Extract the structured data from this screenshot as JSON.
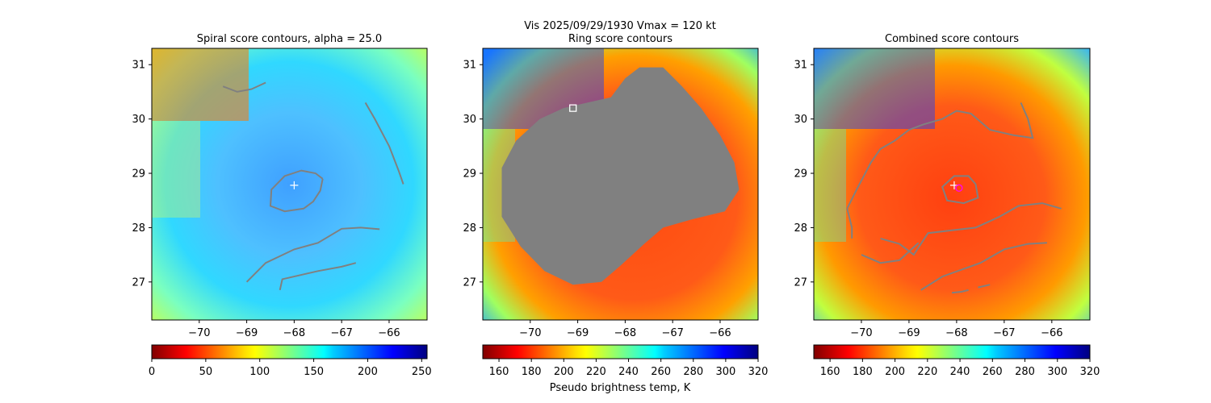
{
  "suptitle_line1": "Vis  2025/09/29/1930    Vmax = 120 kt",
  "colorbar_label": "Pseudo brightness temp, K",
  "colors": {
    "contour": "#808080",
    "center_marker": "#ffffff",
    "combined_circle": "#ff00ff"
  },
  "chart_data": [
    {
      "type": "heatmap",
      "title": "Spiral score contours, alpha = 25.0",
      "colormap": "jet",
      "xlim": [
        -71.0,
        -65.2
      ],
      "ylim": [
        26.3,
        31.3
      ],
      "xticks": [
        -70,
        -69,
        -68,
        -67,
        -66
      ],
      "yticks": [
        27,
        28,
        29,
        30,
        31
      ],
      "center": {
        "lon": -68.0,
        "lat": 28.78
      },
      "contours": [
        [
          [
            -67.4,
            28.9
          ],
          [
            -67.55,
            29.0
          ],
          [
            -67.85,
            29.05
          ],
          [
            -68.2,
            28.95
          ],
          [
            -68.48,
            28.7
          ],
          [
            -68.5,
            28.4
          ],
          [
            -68.2,
            28.3
          ],
          [
            -67.8,
            28.35
          ],
          [
            -67.6,
            28.48
          ],
          [
            -67.45,
            28.68
          ],
          [
            -67.4,
            28.9
          ]
        ],
        [
          [
            -66.5,
            30.3
          ],
          [
            -66.3,
            30.0
          ],
          [
            -66.0,
            29.5
          ],
          [
            -65.8,
            29.05
          ],
          [
            -65.7,
            28.8
          ]
        ],
        [
          [
            -69.0,
            27.0
          ],
          [
            -68.6,
            27.35
          ],
          [
            -68.0,
            27.6
          ],
          [
            -67.5,
            27.72
          ],
          [
            -67.0,
            27.98
          ],
          [
            -66.6,
            28.0
          ],
          [
            -66.2,
            27.97
          ]
        ],
        [
          [
            -68.3,
            26.85
          ],
          [
            -68.25,
            27.05
          ],
          [
            -67.5,
            27.2
          ],
          [
            -67.0,
            27.28
          ],
          [
            -66.7,
            27.35
          ]
        ],
        [
          [
            -69.5,
            30.6
          ],
          [
            -69.2,
            30.5
          ],
          [
            -68.9,
            30.55
          ],
          [
            -68.6,
            30.67
          ]
        ]
      ],
      "colorbar": {
        "min": 0,
        "max": 255,
        "ticks": [
          0,
          50,
          100,
          150,
          200,
          250
        ],
        "cmap": "jet"
      }
    },
    {
      "type": "heatmap",
      "title": "Ring score contours",
      "colormap": "jet_r",
      "xlim": [
        -71.0,
        -65.2
      ],
      "ylim": [
        26.3,
        31.3
      ],
      "xticks": [
        -70,
        -69,
        -68,
        -67,
        -66
      ],
      "yticks": [
        27,
        28,
        29,
        30,
        31
      ],
      "square_marker": {
        "lon": -69.1,
        "lat": 30.2
      },
      "filled_region": [
        [
          -70.6,
          29.1
        ],
        [
          -70.3,
          29.6
        ],
        [
          -69.8,
          30.0
        ],
        [
          -69.3,
          30.2
        ],
        [
          -68.8,
          30.3
        ],
        [
          -68.3,
          30.4
        ],
        [
          -68.0,
          30.75
        ],
        [
          -67.7,
          30.95
        ],
        [
          -67.2,
          30.95
        ],
        [
          -66.8,
          30.6
        ],
        [
          -66.4,
          30.2
        ],
        [
          -66.0,
          29.7
        ],
        [
          -65.7,
          29.2
        ],
        [
          -65.6,
          28.7
        ],
        [
          -65.9,
          28.3
        ],
        [
          -66.6,
          28.15
        ],
        [
          -67.2,
          28.0
        ],
        [
          -67.6,
          27.7
        ],
        [
          -68.1,
          27.3
        ],
        [
          -68.5,
          27.0
        ],
        [
          -69.1,
          26.95
        ],
        [
          -69.7,
          27.2
        ],
        [
          -70.2,
          27.65
        ],
        [
          -70.6,
          28.2
        ],
        [
          -70.6,
          29.1
        ]
      ],
      "colorbar": {
        "min": 150,
        "max": 320,
        "ticks": [
          160,
          180,
          200,
          220,
          240,
          260,
          280,
          300,
          320
        ],
        "cmap": "jet_r"
      }
    },
    {
      "type": "heatmap",
      "title": "Combined score contours",
      "colormap": "jet_r",
      "xlim": [
        -71.0,
        -65.2
      ],
      "ylim": [
        26.3,
        31.3
      ],
      "xticks": [
        -70,
        -69,
        -68,
        -67,
        -66
      ],
      "yticks": [
        27,
        28,
        29,
        30,
        31
      ],
      "center": {
        "lon": -68.05,
        "lat": 28.78
      },
      "circle_marker": {
        "lon": -67.95,
        "lat": 28.73
      },
      "contours": [
        [
          [
            -67.6,
            28.8
          ],
          [
            -67.75,
            28.95
          ],
          [
            -68.05,
            28.95
          ],
          [
            -68.3,
            28.75
          ],
          [
            -68.2,
            28.5
          ],
          [
            -67.85,
            28.45
          ],
          [
            -67.55,
            28.55
          ],
          [
            -67.6,
            28.8
          ]
        ],
        [
          [
            -70.3,
            28.35
          ],
          [
            -70.1,
            28.7
          ],
          [
            -69.8,
            29.2
          ],
          [
            -69.6,
            29.45
          ],
          [
            -69.3,
            29.6
          ],
          [
            -69.0,
            29.8
          ],
          [
            -68.7,
            29.9
          ],
          [
            -68.3,
            30.0
          ],
          [
            -68.0,
            30.15
          ],
          [
            -67.7,
            30.1
          ],
          [
            -67.3,
            29.8
          ],
          [
            -66.8,
            29.7
          ],
          [
            -66.4,
            29.65
          ],
          [
            -66.5,
            30.0
          ],
          [
            -66.65,
            30.3
          ]
        ],
        [
          [
            -70.3,
            28.35
          ],
          [
            -70.2,
            28.0
          ],
          [
            -70.2,
            27.8
          ]
        ],
        [
          [
            -69.6,
            27.8
          ],
          [
            -69.2,
            27.7
          ],
          [
            -68.9,
            27.5
          ],
          [
            -68.6,
            27.9
          ],
          [
            -68.1,
            27.95
          ],
          [
            -67.6,
            28.0
          ],
          [
            -67.1,
            28.2
          ],
          [
            -66.7,
            28.4
          ],
          [
            -66.2,
            28.45
          ],
          [
            -65.8,
            28.35
          ]
        ],
        [
          [
            -70.0,
            27.5
          ],
          [
            -69.6,
            27.35
          ],
          [
            -69.2,
            27.4
          ],
          [
            -68.8,
            27.72
          ]
        ],
        [
          [
            -68.75,
            26.85
          ],
          [
            -68.3,
            27.1
          ],
          [
            -67.5,
            27.35
          ],
          [
            -67.0,
            27.6
          ],
          [
            -66.5,
            27.7
          ],
          [
            -66.1,
            27.72
          ]
        ],
        [
          [
            -68.1,
            26.8
          ],
          [
            -67.9,
            26.82
          ],
          [
            -67.75,
            26.85
          ]
        ],
        [
          [
            -67.55,
            26.9
          ],
          [
            -67.3,
            26.95
          ]
        ]
      ],
      "colorbar": {
        "min": 150,
        "max": 320,
        "ticks": [
          160,
          180,
          200,
          220,
          240,
          260,
          280,
          300,
          320
        ],
        "cmap": "jet_r"
      }
    }
  ]
}
